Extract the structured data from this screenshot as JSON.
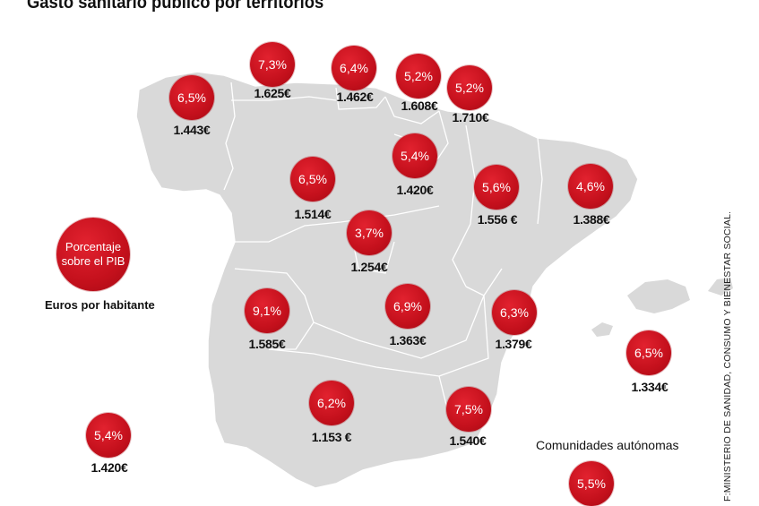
{
  "title": "Gasto sanitario público por territorios",
  "legend": {
    "bubble_line1": "Porcentaje",
    "bubble_line2": "sobre el PIB",
    "euros_label": "Euros por habitante"
  },
  "comunidades_label": "Comunidades autónomas",
  "source": "F:MINISTERIO DE SANIDAD, CONSUMO Y BIENESTAR SOCIAL.",
  "colors": {
    "bubble": "#c4101c",
    "land": "#d9d9d9",
    "border": "#ffffff"
  },
  "regions": [
    {
      "pib": "7,3%",
      "eur": "1.625€"
    },
    {
      "pib": "6,4%",
      "eur": "1.462€"
    },
    {
      "pib": "5,2%",
      "eur": "1.608€"
    },
    {
      "pib": "5,2%",
      "eur": "1.710€"
    },
    {
      "pib": "6,5%",
      "eur": "1.443€"
    },
    {
      "pib": "6,5%",
      "eur": "1.514€"
    },
    {
      "pib": "5,4%",
      "eur": "1.420€"
    },
    {
      "pib": "5,6%",
      "eur": "1.556 €"
    },
    {
      "pib": "4,6%",
      "eur": "1.388€"
    },
    {
      "pib": "3,7%",
      "eur": "1.254€"
    },
    {
      "pib": "9,1%",
      "eur": "1.585€"
    },
    {
      "pib": "6,9%",
      "eur": "1.363€"
    },
    {
      "pib": "6,3%",
      "eur": "1.379€"
    },
    {
      "pib": "6,5%",
      "eur": "1.334€"
    },
    {
      "pib": "6,2%",
      "eur": "1.153 €"
    },
    {
      "pib": "7,5%",
      "eur": "1.540€"
    },
    {
      "pib": "5,4%",
      "eur": "1.420€"
    },
    {
      "pib": "5,5%",
      "eur": ""
    }
  ]
}
